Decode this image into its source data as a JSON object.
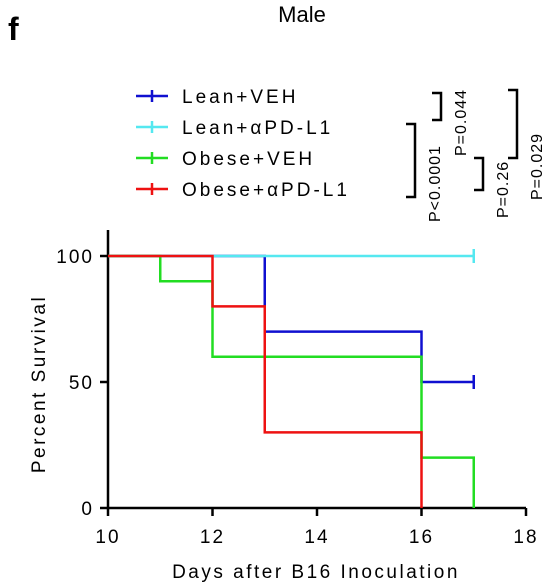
{
  "panel_label": "f",
  "chart_data": {
    "type": "line",
    "subtype": "kaplan-meier-survival",
    "title": "Male",
    "xlabel": "Days after B16 Inoculation",
    "ylabel": "Percent Survival",
    "xlim": [
      10,
      18
    ],
    "ylim": [
      0,
      100
    ],
    "xticks": [
      "10",
      "12",
      "14",
      "16",
      "18"
    ],
    "yticks": [
      "0",
      "50",
      "100"
    ],
    "grid": false,
    "legend_position": "top-left",
    "series": [
      {
        "name": "Lean+VEH",
        "color": "#1010d0",
        "x": [
          10,
          13,
          13,
          16,
          16,
          17
        ],
        "y": [
          100,
          100,
          70,
          70,
          50,
          50
        ],
        "censored_end": true
      },
      {
        "name": "Lean+αPD-L1",
        "color": "#55e8f0",
        "x": [
          10,
          17
        ],
        "y": [
          100,
          100
        ],
        "censored_end": true
      },
      {
        "name": "Obese+VEH",
        "color": "#22dd22",
        "x": [
          10,
          11,
          11,
          12,
          12,
          16,
          16,
          17,
          17
        ],
        "y": [
          100,
          100,
          90,
          90,
          60,
          60,
          20,
          20,
          0
        ],
        "censored_end": false
      },
      {
        "name": "Obese+αPD-L1",
        "color": "#ee1111",
        "x": [
          10,
          12,
          12,
          13,
          13,
          16,
          16
        ],
        "y": [
          100,
          100,
          80,
          80,
          30,
          30,
          0
        ],
        "censored_end": false
      }
    ],
    "comparisons": [
      {
        "label": "P=0.044"
      },
      {
        "label": "P<0.0001"
      },
      {
        "label": "P=0.26"
      },
      {
        "label": "P=0.029"
      }
    ]
  }
}
